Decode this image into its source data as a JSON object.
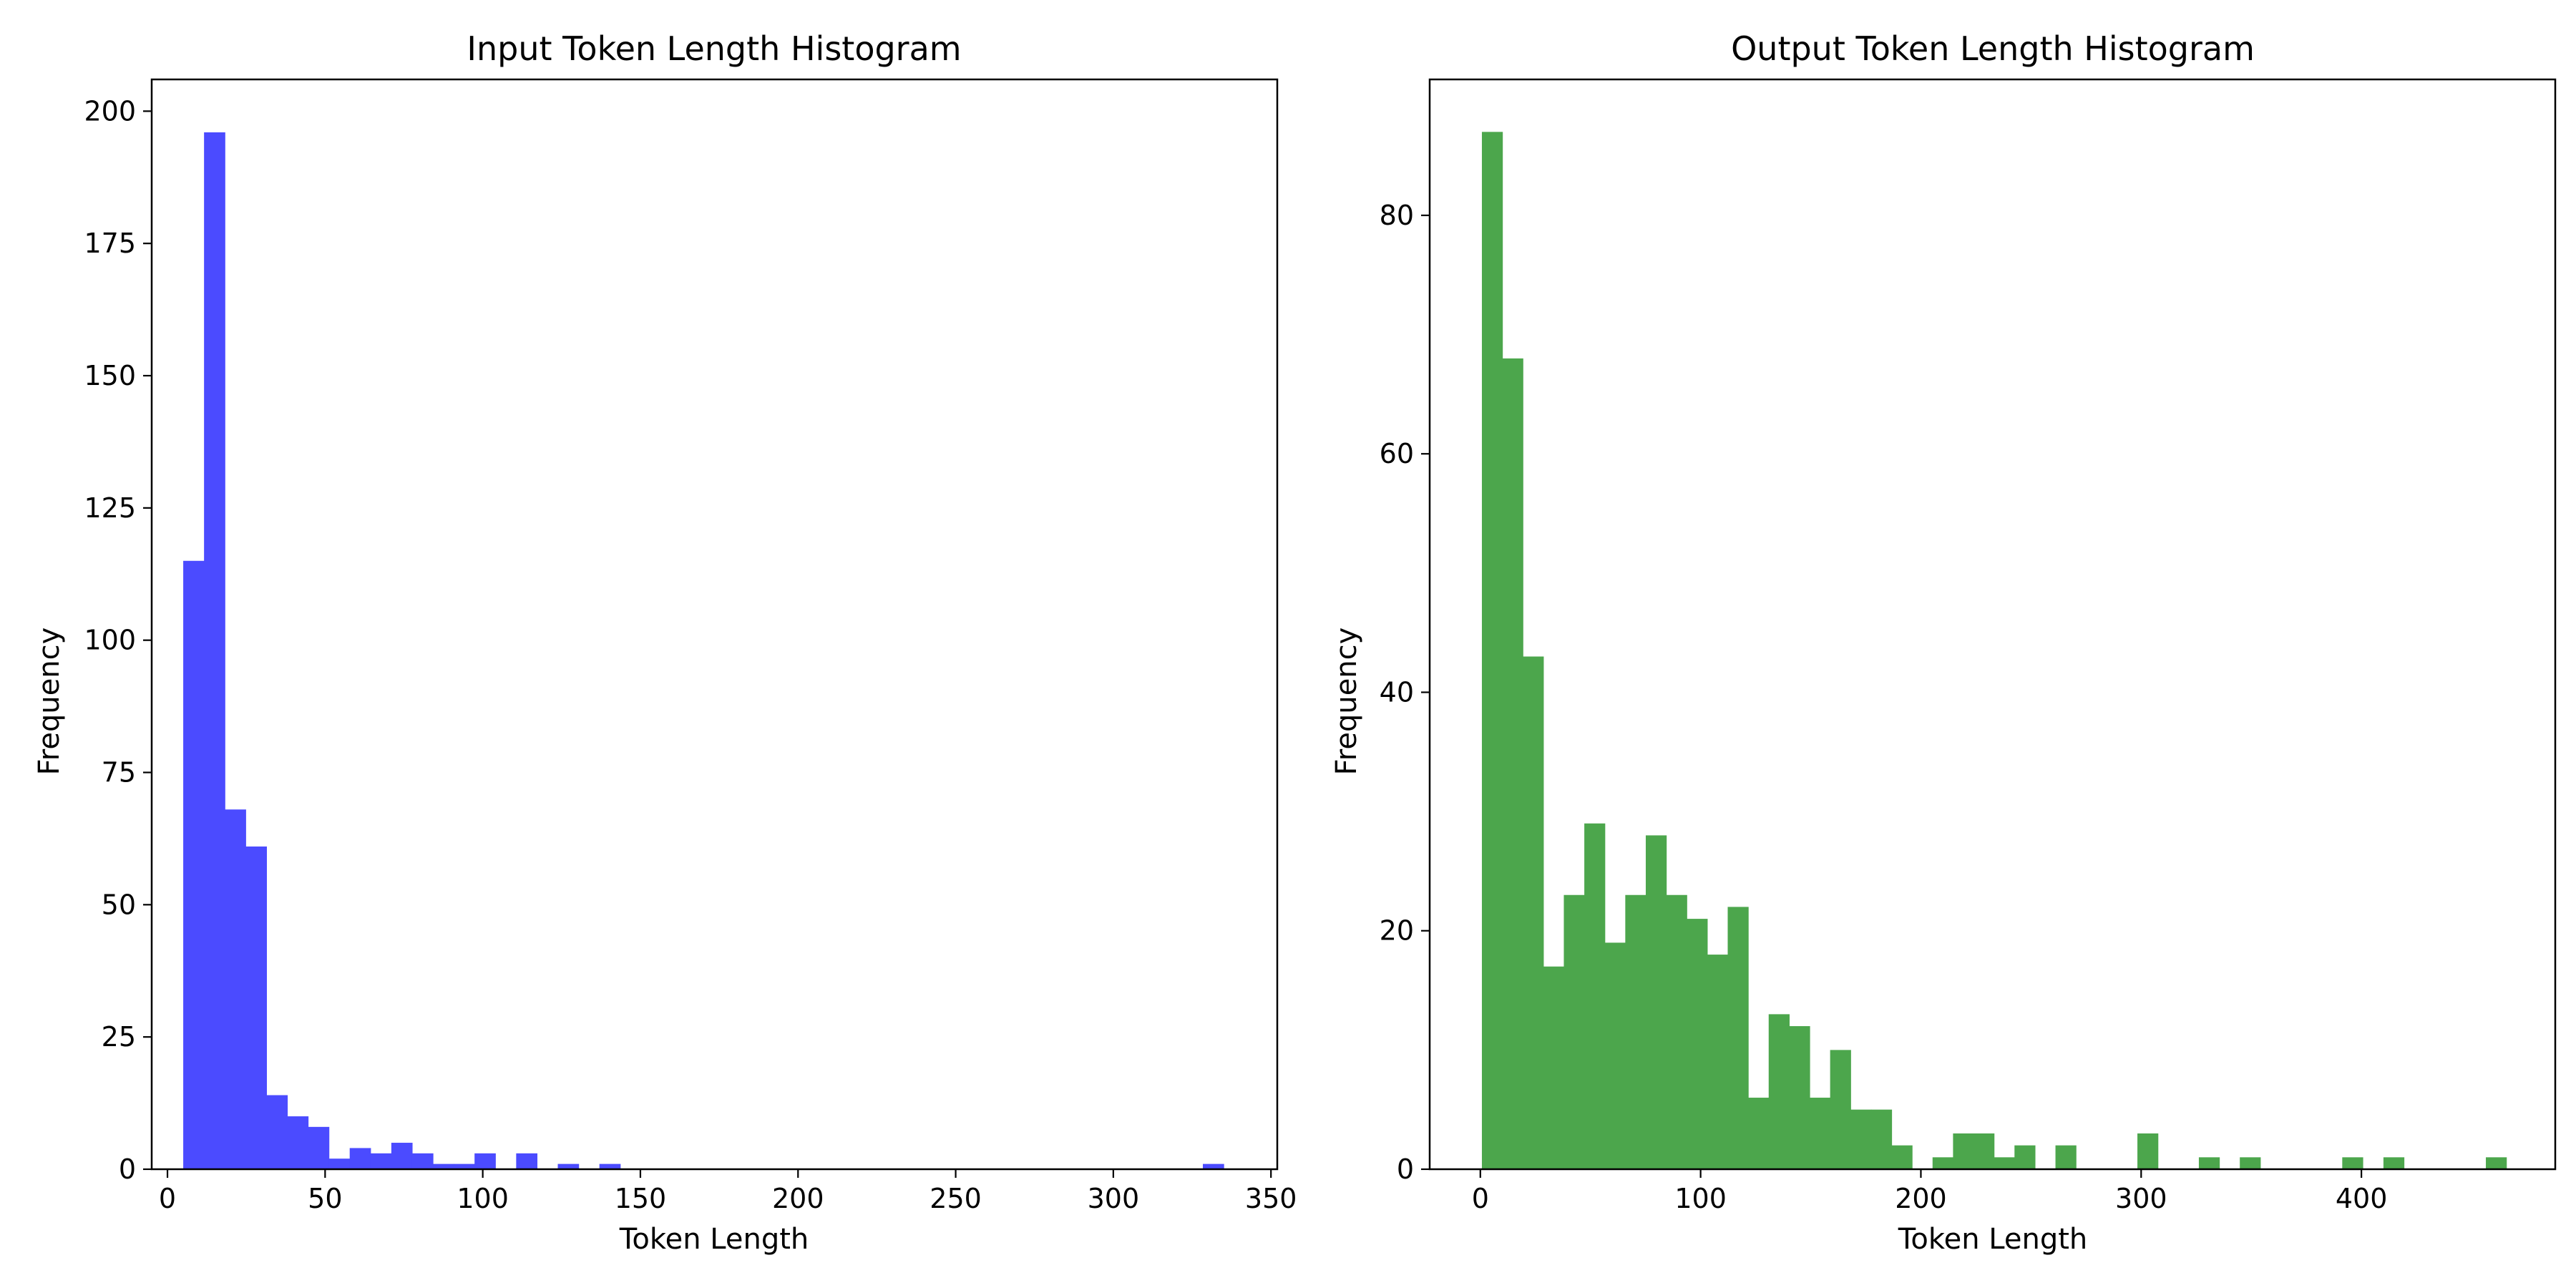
{
  "chart_data": [
    {
      "type": "bar",
      "title": "Input Token Length Histogram",
      "xlabel": "Token Length",
      "ylabel": "Frequency",
      "xlim": [
        -5,
        352
      ],
      "ylim": [
        0,
        206
      ],
      "xticks": [
        0,
        50,
        100,
        150,
        200,
        250,
        300,
        350
      ],
      "yticks": [
        0,
        25,
        50,
        75,
        100,
        125,
        150,
        175,
        200
      ],
      "bin_width": 6.6,
      "color": "#4b4bff",
      "bins": [
        {
          "x": 5.0,
          "count": 115
        },
        {
          "x": 11.6,
          "count": 196
        },
        {
          "x": 18.2,
          "count": 68
        },
        {
          "x": 24.8,
          "count": 61
        },
        {
          "x": 31.4,
          "count": 14
        },
        {
          "x": 38.0,
          "count": 10
        },
        {
          "x": 44.6,
          "count": 8
        },
        {
          "x": 51.2,
          "count": 2
        },
        {
          "x": 57.8,
          "count": 4
        },
        {
          "x": 64.4,
          "count": 3
        },
        {
          "x": 71.0,
          "count": 5
        },
        {
          "x": 77.6,
          "count": 3
        },
        {
          "x": 84.2,
          "count": 1
        },
        {
          "x": 90.8,
          "count": 1
        },
        {
          "x": 97.4,
          "count": 3
        },
        {
          "x": 110.6,
          "count": 3
        },
        {
          "x": 123.8,
          "count": 1
        },
        {
          "x": 137.0,
          "count": 1
        },
        {
          "x": 328.4,
          "count": 1
        }
      ]
    },
    {
      "type": "bar",
      "title": "Output Token Length Histogram",
      "xlabel": "Token Length",
      "ylabel": "Frequency",
      "xlim": [
        -23,
        488
      ],
      "ylim": [
        0,
        91.4
      ],
      "xticks": [
        0,
        100,
        200,
        300,
        400
      ],
      "yticks": [
        0,
        20,
        40,
        60,
        80
      ],
      "bin_width": 9.3,
      "color": "#4ca64c",
      "bins": [
        {
          "x": 0.7,
          "count": 87
        },
        {
          "x": 10.0,
          "count": 68
        },
        {
          "x": 19.3,
          "count": 43
        },
        {
          "x": 28.6,
          "count": 17
        },
        {
          "x": 37.9,
          "count": 23
        },
        {
          "x": 47.2,
          "count": 29
        },
        {
          "x": 56.5,
          "count": 19
        },
        {
          "x": 65.8,
          "count": 23
        },
        {
          "x": 75.1,
          "count": 28
        },
        {
          "x": 84.4,
          "count": 23
        },
        {
          "x": 93.7,
          "count": 21
        },
        {
          "x": 103.0,
          "count": 18
        },
        {
          "x": 112.3,
          "count": 22
        },
        {
          "x": 121.6,
          "count": 6
        },
        {
          "x": 130.9,
          "count": 13
        },
        {
          "x": 140.2,
          "count": 12
        },
        {
          "x": 149.5,
          "count": 6
        },
        {
          "x": 158.8,
          "count": 10
        },
        {
          "x": 168.1,
          "count": 5
        },
        {
          "x": 177.4,
          "count": 5
        },
        {
          "x": 186.7,
          "count": 2
        },
        {
          "x": 205.3,
          "count": 1
        },
        {
          "x": 214.6,
          "count": 3
        },
        {
          "x": 223.9,
          "count": 3
        },
        {
          "x": 233.2,
          "count": 1
        },
        {
          "x": 242.5,
          "count": 2
        },
        {
          "x": 261.1,
          "count": 2
        },
        {
          "x": 298.3,
          "count": 3
        },
        {
          "x": 326.2,
          "count": 1
        },
        {
          "x": 344.8,
          "count": 1
        },
        {
          "x": 391.3,
          "count": 1
        },
        {
          "x": 410.0,
          "count": 1
        },
        {
          "x": 456.5,
          "count": 1
        }
      ]
    }
  ]
}
